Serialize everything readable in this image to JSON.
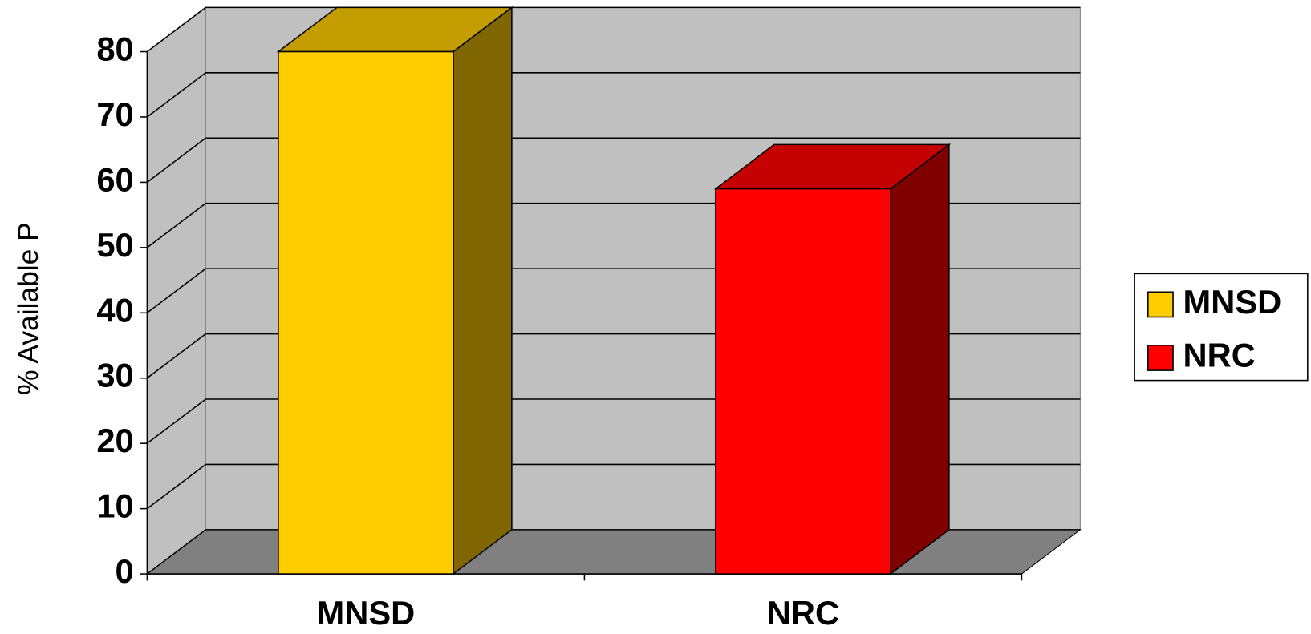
{
  "chart_data": {
    "type": "bar3d",
    "y_label": "% Available P",
    "categories": [
      "MNSD",
      "NRC"
    ],
    "series": [
      {
        "name": "MNSD",
        "color": "#ffcc00",
        "values": [
          80,
          null
        ]
      },
      {
        "name": "NRC",
        "color": "#ff0000",
        "values": [
          null,
          59
        ]
      }
    ],
    "ylim": [
      0,
      80
    ],
    "yticks": [
      0,
      10,
      20,
      30,
      40,
      50,
      60,
      70,
      80
    ],
    "grid": true,
    "legend": "right"
  }
}
